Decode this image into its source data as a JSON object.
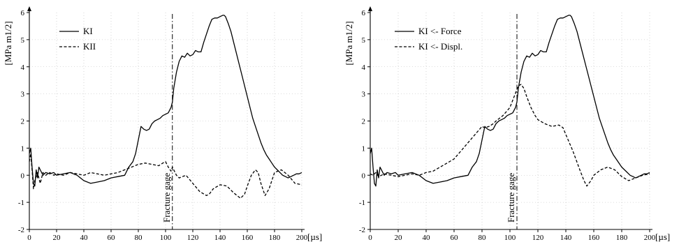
{
  "chart_data": [
    {
      "type": "line",
      "title": "",
      "xlabel": "[µs]",
      "ylabel": "[MPa m1/2]",
      "xlim": [
        0,
        200
      ],
      "ylim": [
        -2,
        6
      ],
      "xticks": [
        0,
        20,
        40,
        60,
        80,
        100,
        120,
        140,
        160,
        180,
        200
      ],
      "yticks": [
        -2,
        -1,
        0,
        1,
        2,
        3,
        4,
        5,
        6
      ],
      "grid": true,
      "legend_position": "top-left",
      "annotation": {
        "label": "Fracture gage",
        "x": 105
      },
      "series": [
        {
          "name": "KI",
          "style": "solid",
          "x": [
            0,
            1,
            2,
            3,
            4,
            5,
            6,
            7,
            8,
            10,
            12,
            15,
            18,
            20,
            25,
            30,
            35,
            40,
            45,
            50,
            55,
            60,
            65,
            70,
            73,
            76,
            78,
            80,
            82,
            84,
            86,
            88,
            90,
            92,
            94,
            96,
            98,
            100,
            102,
            104,
            105,
            106,
            108,
            110,
            112,
            114,
            116,
            118,
            120,
            122,
            124,
            126,
            128,
            130,
            132,
            134,
            136,
            138,
            140,
            142,
            143,
            144,
            146,
            148,
            150,
            152,
            154,
            156,
            158,
            160,
            162,
            164,
            166,
            168,
            170,
            172,
            174,
            176,
            178,
            180,
            182,
            184,
            186,
            188,
            190,
            192,
            194,
            196,
            198,
            200
          ],
          "y": [
            0.8,
            1.0,
            0.3,
            -0.3,
            -0.4,
            0.2,
            -0.1,
            0.3,
            0.2,
            0.0,
            0.1,
            0.05,
            0.1,
            0.0,
            0.05,
            0.1,
            0.0,
            -0.2,
            -0.3,
            -0.25,
            -0.2,
            -0.1,
            -0.05,
            0.0,
            0.3,
            0.5,
            0.8,
            1.3,
            1.8,
            1.7,
            1.65,
            1.7,
            1.9,
            2.0,
            2.05,
            2.1,
            2.2,
            2.25,
            2.3,
            2.5,
            2.7,
            3.2,
            3.8,
            4.2,
            4.4,
            4.35,
            4.5,
            4.4,
            4.45,
            4.6,
            4.55,
            4.55,
            4.9,
            5.2,
            5.5,
            5.75,
            5.8,
            5.8,
            5.85,
            5.9,
            5.9,
            5.85,
            5.6,
            5.3,
            4.9,
            4.5,
            4.1,
            3.7,
            3.3,
            2.9,
            2.5,
            2.1,
            1.8,
            1.5,
            1.2,
            0.95,
            0.75,
            0.6,
            0.45,
            0.3,
            0.2,
            0.1,
            0.0,
            -0.05,
            -0.1,
            -0.05,
            0.0,
            0.05,
            0.05,
            0.1
          ]
        },
        {
          "name": "KII",
          "style": "dashed",
          "x": [
            0,
            1,
            2,
            3,
            4,
            6,
            8,
            10,
            12,
            15,
            18,
            20,
            25,
            30,
            35,
            40,
            45,
            50,
            55,
            60,
            65,
            70,
            75,
            80,
            85,
            90,
            95,
            98,
            100,
            102,
            104,
            105,
            106,
            108,
            110,
            115,
            120,
            125,
            130,
            132,
            135,
            140,
            145,
            150,
            155,
            158,
            160,
            163,
            166,
            168,
            170,
            173,
            176,
            180,
            185,
            190,
            195,
            200
          ],
          "y": [
            0.5,
            0.8,
            0.2,
            -0.5,
            -0.2,
            0.1,
            -0.3,
            0.1,
            0.0,
            0.1,
            0.0,
            0.05,
            0.0,
            0.1,
            0.05,
            0.0,
            0.1,
            0.05,
            0.0,
            0.05,
            0.1,
            0.2,
            0.3,
            0.4,
            0.45,
            0.4,
            0.35,
            0.45,
            0.5,
            0.3,
            0.15,
            0.3,
            0.2,
            0.0,
            -0.1,
            0.0,
            -0.3,
            -0.6,
            -0.75,
            -0.7,
            -0.5,
            -0.35,
            -0.4,
            -0.65,
            -0.85,
            -0.7,
            -0.4,
            0.0,
            0.2,
            0.1,
            -0.3,
            -0.75,
            -0.5,
            0.1,
            0.2,
            0.0,
            -0.3,
            -0.35
          ]
        }
      ]
    },
    {
      "type": "line",
      "title": "",
      "xlabel": "[µs]",
      "ylabel": "[MPa m1/2]",
      "xlim": [
        0,
        200
      ],
      "ylim": [
        -2,
        6
      ],
      "xticks": [
        0,
        20,
        40,
        60,
        80,
        100,
        120,
        140,
        160,
        180,
        200
      ],
      "yticks": [
        -2,
        -1,
        0,
        1,
        2,
        3,
        4,
        5,
        6
      ],
      "grid": true,
      "legend_position": "top-left",
      "annotation": {
        "label": "Fracture gage",
        "x": 105
      },
      "series": [
        {
          "name": "KI <- Force",
          "style": "solid",
          "x": [
            0,
            1,
            2,
            3,
            4,
            5,
            6,
            7,
            8,
            10,
            12,
            15,
            18,
            20,
            25,
            30,
            35,
            40,
            45,
            50,
            55,
            60,
            65,
            70,
            73,
            76,
            78,
            80,
            82,
            84,
            86,
            88,
            90,
            92,
            94,
            96,
            98,
            100,
            102,
            104,
            105,
            106,
            108,
            110,
            112,
            114,
            116,
            118,
            120,
            122,
            124,
            126,
            128,
            130,
            132,
            134,
            136,
            138,
            140,
            142,
            143,
            144,
            146,
            148,
            150,
            152,
            154,
            156,
            158,
            160,
            162,
            164,
            166,
            168,
            170,
            172,
            174,
            176,
            178,
            180,
            182,
            184,
            186,
            188,
            190,
            192,
            194,
            196,
            198,
            200
          ],
          "y": [
            0.8,
            1.0,
            0.3,
            -0.3,
            -0.4,
            0.2,
            -0.1,
            0.3,
            0.2,
            0.0,
            0.1,
            0.05,
            0.1,
            0.0,
            0.05,
            0.1,
            0.0,
            -0.2,
            -0.3,
            -0.25,
            -0.2,
            -0.1,
            -0.05,
            0.0,
            0.3,
            0.5,
            0.8,
            1.3,
            1.8,
            1.7,
            1.65,
            1.7,
            1.9,
            2.0,
            2.05,
            2.1,
            2.2,
            2.25,
            2.3,
            2.5,
            2.7,
            3.2,
            3.8,
            4.2,
            4.4,
            4.35,
            4.5,
            4.4,
            4.45,
            4.6,
            4.55,
            4.55,
            4.9,
            5.2,
            5.5,
            5.75,
            5.8,
            5.8,
            5.85,
            5.9,
            5.9,
            5.85,
            5.6,
            5.3,
            4.9,
            4.5,
            4.1,
            3.7,
            3.3,
            2.9,
            2.5,
            2.1,
            1.8,
            1.5,
            1.2,
            0.95,
            0.75,
            0.6,
            0.45,
            0.3,
            0.2,
            0.1,
            0.0,
            -0.05,
            -0.1,
            -0.05,
            0.0,
            0.05,
            0.05,
            0.1
          ]
        },
        {
          "name": "KI <- Displ.",
          "style": "dashed",
          "x": [
            0,
            2,
            4,
            6,
            8,
            10,
            15,
            20,
            25,
            30,
            35,
            40,
            45,
            50,
            55,
            60,
            65,
            70,
            75,
            80,
            82,
            85,
            88,
            90,
            95,
            100,
            103,
            106,
            108,
            110,
            112,
            115,
            118,
            120,
            125,
            130,
            135,
            138,
            140,
            145,
            150,
            153,
            155,
            158,
            160,
            165,
            170,
            175,
            180,
            185,
            190,
            195,
            200
          ],
          "y": [
            0.05,
            0.0,
            0.1,
            -0.05,
            0.0,
            0.05,
            0.0,
            -0.05,
            0.0,
            0.05,
            0.0,
            0.1,
            0.15,
            0.3,
            0.45,
            0.6,
            0.9,
            1.2,
            1.5,
            1.8,
            1.75,
            1.8,
            1.9,
            2.0,
            2.2,
            2.5,
            2.9,
            3.3,
            3.35,
            3.2,
            2.9,
            2.5,
            2.2,
            2.05,
            1.9,
            1.8,
            1.85,
            1.75,
            1.5,
            0.9,
            0.2,
            -0.2,
            -0.4,
            -0.2,
            0.0,
            0.2,
            0.3,
            0.2,
            -0.05,
            -0.2,
            -0.1,
            0.0,
            0.05
          ]
        }
      ]
    }
  ]
}
